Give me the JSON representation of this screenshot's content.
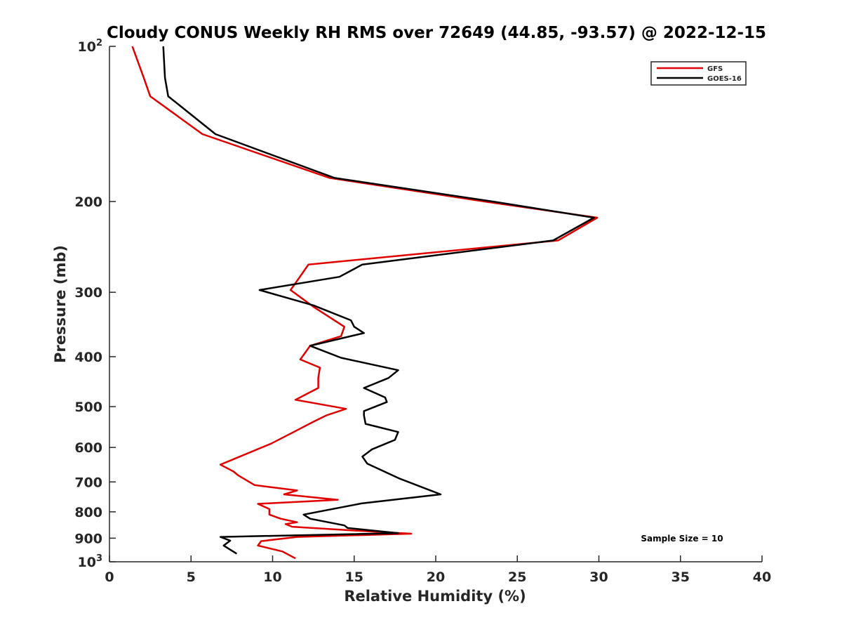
{
  "chart_data": {
    "type": "line",
    "title": "Cloudy CONUS Weekly RH RMS over 72649 (44.85, -93.57) @ 2022-12-15",
    "xlabel": "Relative Humidity (%)",
    "ylabel": "Pressure (mb)",
    "xlim": [
      0,
      40
    ],
    "ylim": [
      100,
      1000
    ],
    "y_scale": "log",
    "y_reversed": true,
    "grid": false,
    "legend_position": "top-right",
    "annotation": "Sample Size = 10",
    "x_ticks": [
      "0",
      "5",
      "10",
      "15",
      "20",
      "25",
      "30",
      "35",
      "40"
    ],
    "y_ticks": [
      {
        "value": 100,
        "label": "10",
        "sup": "2"
      },
      {
        "value": 200,
        "label": "200",
        "sup": ""
      },
      {
        "value": 300,
        "label": "300",
        "sup": ""
      },
      {
        "value": 400,
        "label": "400",
        "sup": ""
      },
      {
        "value": 500,
        "label": "500",
        "sup": ""
      },
      {
        "value": 600,
        "label": "600",
        "sup": ""
      },
      {
        "value": 700,
        "label": "700",
        "sup": ""
      },
      {
        "value": 800,
        "label": "800",
        "sup": ""
      },
      {
        "value": 900,
        "label": "900",
        "sup": ""
      },
      {
        "value": 1000,
        "label": "10",
        "sup": "3"
      }
    ],
    "series": [
      {
        "name": "GFS",
        "color": "#e00000",
        "points": [
          [
            1.4,
            100
          ],
          [
            2.1,
            115
          ],
          [
            2.5,
            125
          ],
          [
            5.7,
            148
          ],
          [
            13.5,
            180
          ],
          [
            23,
            200
          ],
          [
            29.9,
            215
          ],
          [
            27.5,
            238
          ],
          [
            12.2,
            265
          ],
          [
            11.5,
            285
          ],
          [
            11.1,
            297
          ],
          [
            12.5,
            320
          ],
          [
            14.4,
            350
          ],
          [
            14.2,
            365
          ],
          [
            12.3,
            381
          ],
          [
            11.7,
            405
          ],
          [
            12.9,
            420
          ],
          [
            12.8,
            440
          ],
          [
            12.8,
            460
          ],
          [
            11.4,
            485
          ],
          [
            14.5,
            505
          ],
          [
            13.3,
            520
          ],
          [
            12.5,
            535
          ],
          [
            11.2,
            562
          ],
          [
            9.9,
            590
          ],
          [
            6.8,
            648
          ],
          [
            7.6,
            668
          ],
          [
            7.9,
            680
          ],
          [
            8.9,
            710
          ],
          [
            11.5,
            727
          ],
          [
            10.7,
            740
          ],
          [
            14,
            758
          ],
          [
            9.1,
            772
          ],
          [
            9.8,
            790
          ],
          [
            9.8,
            810
          ],
          [
            10.5,
            825
          ],
          [
            11.5,
            838
          ],
          [
            10.8,
            845
          ],
          [
            11.2,
            855
          ],
          [
            16.4,
            875
          ],
          [
            18.5,
            882
          ],
          [
            11.5,
            895
          ],
          [
            9.3,
            912
          ],
          [
            9.1,
            930
          ],
          [
            10.6,
            955
          ],
          [
            11.4,
            985
          ]
        ]
      },
      {
        "name": "GOES-16",
        "color": "#000000",
        "points": [
          [
            3.3,
            100
          ],
          [
            3.4,
            115
          ],
          [
            3.6,
            125
          ],
          [
            6.5,
            148
          ],
          [
            13.8,
            180
          ],
          [
            23.5,
            200
          ],
          [
            29.7,
            215
          ],
          [
            27.2,
            238
          ],
          [
            15.5,
            265
          ],
          [
            14.1,
            280
          ],
          [
            9.2,
            297
          ],
          [
            12.5,
            318
          ],
          [
            14.8,
            340
          ],
          [
            15,
            350
          ],
          [
            15.6,
            360
          ],
          [
            12.3,
            381
          ],
          [
            14.2,
            402
          ],
          [
            17.7,
            425
          ],
          [
            17.1,
            440
          ],
          [
            15.6,
            460
          ],
          [
            16.9,
            480
          ],
          [
            17,
            490
          ],
          [
            15.6,
            510
          ],
          [
            15.6,
            520
          ],
          [
            15.7,
            540
          ],
          [
            17.7,
            560
          ],
          [
            17.5,
            580
          ],
          [
            16.1,
            605
          ],
          [
            15.5,
            625
          ],
          [
            15.8,
            645
          ],
          [
            17.8,
            690
          ],
          [
            20.3,
            740
          ],
          [
            15.5,
            770
          ],
          [
            11.9,
            810
          ],
          [
            12.3,
            825
          ],
          [
            14.4,
            850
          ],
          [
            14.6,
            860
          ],
          [
            17.7,
            880
          ],
          [
            6.8,
            895
          ],
          [
            7.4,
            910
          ],
          [
            7,
            930
          ],
          [
            7.8,
            965
          ]
        ]
      }
    ]
  }
}
